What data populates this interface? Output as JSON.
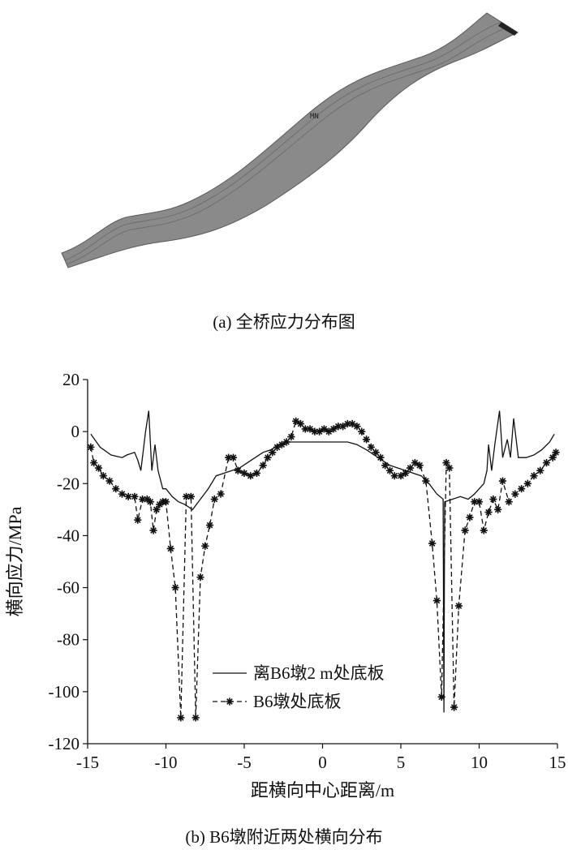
{
  "figure_a": {
    "model_label": "MN",
    "caption": "(a) 全桥应力分布图"
  },
  "figure_b": {
    "caption": "(b) B6墩附近两处横向分布"
  },
  "colors": {
    "line": "#111111",
    "deck": "#8a8a8a",
    "deck_edge": "#5a5a5a"
  },
  "chart_data": {
    "type": "line",
    "xlabel": "距横向中心距离/m",
    "ylabel": "横向应力/MPa",
    "xlim": [
      -15,
      15
    ],
    "ylim": [
      -120,
      20
    ],
    "xticks": [
      -15,
      -10,
      -5,
      0,
      5,
      10,
      15
    ],
    "yticks": [
      20,
      0,
      -20,
      -40,
      -60,
      -80,
      -100,
      -120
    ],
    "legend_position": "lower-center",
    "series": [
      {
        "name": "离B6墩2 m处底板",
        "style": "solid",
        "x": [
          -14.8,
          -14.2,
          -13.5,
          -12.8,
          -12.5,
          -12.0,
          -11.8,
          -11.6,
          -11.3,
          -11.1,
          -10.9,
          -10.7,
          -10.5,
          -10.2,
          -10.0,
          -9.6,
          -9.2,
          -8.8,
          -8.3,
          -7.8,
          -7.3,
          -6.8,
          -6.3,
          -5.8,
          -5.3,
          -4.8,
          -4.3,
          -3.8,
          -3.3,
          -2.8,
          -2.2,
          -1.6,
          -1.0,
          -0.5,
          0.0,
          0.5,
          1.0,
          1.6,
          2.2,
          2.8,
          3.3,
          3.8,
          4.3,
          4.8,
          5.3,
          5.8,
          6.3,
          6.8,
          7.3,
          7.7,
          7.75,
          7.8,
          8.3,
          8.8,
          9.3,
          9.7,
          10.0,
          10.3,
          10.5,
          10.6,
          10.8,
          11.0,
          11.3,
          11.5,
          11.8,
          12.0,
          12.2,
          12.5,
          13.0,
          13.5,
          14.0,
          14.5,
          14.8
        ],
        "y": [
          -1,
          -6,
          -9,
          -10,
          -9,
          -8,
          -11,
          -15,
          0,
          8,
          -15,
          -5,
          -15,
          -22,
          -22,
          -25,
          -27,
          -28,
          -30,
          -26,
          -22,
          -17,
          -16,
          -15,
          -14,
          -12,
          -10,
          -8,
          -7,
          -5,
          -4,
          -4,
          -4,
          -4,
          -4,
          -4,
          -4,
          -4,
          -5,
          -7,
          -9,
          -11,
          -13,
          -14,
          -15,
          -16,
          -17,
          -20,
          -24,
          -26,
          -108,
          -27,
          -26,
          -25,
          -26,
          -24,
          -22,
          -20,
          -15,
          -5,
          -15,
          -5,
          8,
          -10,
          -3,
          -10,
          5,
          -10,
          -10,
          -9,
          -7,
          -4,
          -1
        ]
      },
      {
        "name": "B6墩处底板",
        "style": "dashed-star",
        "x": [
          -14.8,
          -14.6,
          -14.3,
          -14.0,
          -13.6,
          -13.2,
          -12.8,
          -12.4,
          -12.0,
          -11.8,
          -11.5,
          -11.2,
          -11.0,
          -10.8,
          -10.6,
          -10.4,
          -10.2,
          -10.0,
          -9.7,
          -9.4,
          -9.05,
          -8.7,
          -8.4,
          -8.1,
          -7.8,
          -7.5,
          -7.2,
          -6.9,
          -6.5,
          -6.0,
          -5.7,
          -5.4,
          -5.0,
          -4.6,
          -4.2,
          -3.8,
          -3.5,
          -3.2,
          -2.9,
          -2.6,
          -2.3,
          -2.0,
          -1.7,
          -1.4,
          -1.1,
          -0.8,
          -0.5,
          -0.2,
          0.1,
          0.4,
          0.7,
          1.0,
          1.3,
          1.6,
          1.9,
          2.2,
          2.5,
          2.8,
          3.1,
          3.4,
          3.7,
          4.0,
          4.3,
          4.6,
          5.0,
          5.3,
          5.6,
          5.9,
          6.2,
          6.6,
          7.0,
          7.3,
          7.6,
          7.9,
          8.1,
          8.4,
          8.7,
          9.1,
          9.4,
          9.7,
          10.0,
          10.3,
          10.6,
          10.9,
          11.2,
          11.5,
          11.9,
          12.3,
          12.7,
          13.1,
          13.5,
          13.9,
          14.3,
          14.7,
          14.9
        ],
        "y": [
          -6,
          -12,
          -14,
          -17,
          -19,
          -22,
          -24,
          -25,
          -25,
          -34,
          -26,
          -26,
          -27,
          -38,
          -30,
          -28,
          -27,
          -27,
          -45,
          -60,
          -110,
          -25,
          -25,
          -110,
          -56,
          -44,
          -36,
          -26,
          -24,
          -10,
          -10,
          -15,
          -16,
          -17,
          -16,
          -13,
          -10,
          -8,
          -6,
          -5,
          -4,
          -2,
          4,
          3,
          1,
          1,
          0,
          0,
          1,
          0,
          1,
          2,
          2,
          3,
          3,
          2,
          0,
          -3,
          -6,
          -8,
          -10,
          -13,
          -15,
          -17,
          -17,
          -16,
          -14,
          -12,
          -13,
          -19,
          -43,
          -65,
          -102,
          -12,
          -14,
          -106,
          -67,
          -38,
          -33,
          -27,
          -27,
          -38,
          -31,
          -26,
          -30,
          -19,
          -27,
          -24,
          -22,
          -20,
          -17,
          -15,
          -12,
          -10,
          -8
        ]
      }
    ]
  }
}
